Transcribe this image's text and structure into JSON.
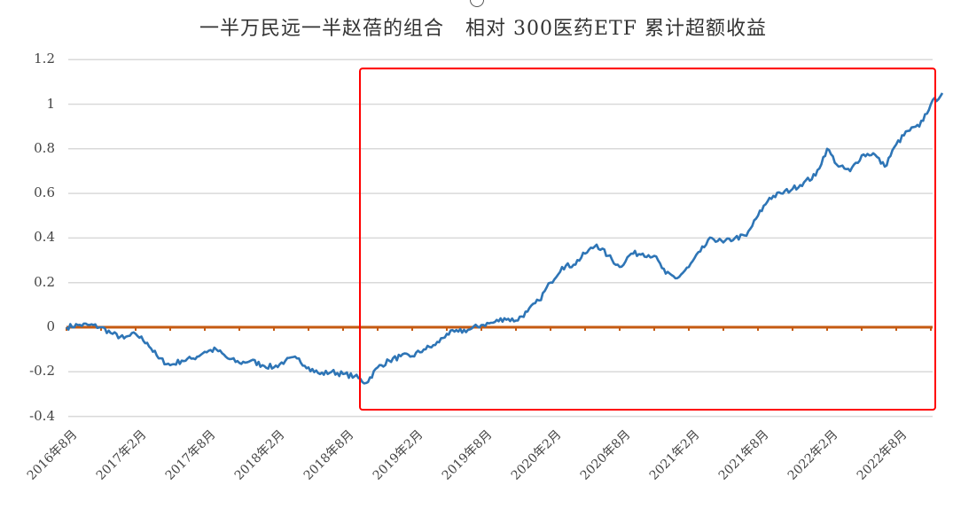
{
  "chart_data": {
    "type": "line",
    "title": "一半万民远一半赵蓓的组合   相对 300医药ETF 累计超额收益",
    "xlabel": "",
    "ylabel": "",
    "ylim": [
      -0.4,
      1.2
    ],
    "yticks": [
      "1.2",
      "1",
      "0.8",
      "0.6",
      "0.4",
      "0.2",
      "0",
      "-0.2",
      "-0.4"
    ],
    "x_tick_labels": [
      "2016年8月",
      "2017年2月",
      "2017年8月",
      "2018年2月",
      "2018年8月",
      "2019年2月",
      "2019年8月",
      "2020年2月",
      "2020年8月",
      "2021年2月",
      "2021年8月",
      "2022年2月",
      "2022年8月"
    ],
    "grid": true,
    "legend": "none",
    "series": [
      {
        "name": "累计超额收益",
        "color": "#2e75b6",
        "points": [
          [
            "2016-08",
            0.0
          ],
          [
            "2016-09",
            0.01
          ],
          [
            "2016-10",
            0.01
          ],
          [
            "2016-11",
            0.0
          ],
          [
            "2016-12",
            -0.03
          ],
          [
            "2017-01",
            -0.05
          ],
          [
            "2017-02",
            -0.03
          ],
          [
            "2017-03",
            -0.07
          ],
          [
            "2017-04",
            -0.14
          ],
          [
            "2017-05",
            -0.17
          ],
          [
            "2017-06",
            -0.15
          ],
          [
            "2017-07",
            -0.14
          ],
          [
            "2017-08",
            -0.11
          ],
          [
            "2017-09",
            -0.1
          ],
          [
            "2017-10",
            -0.14
          ],
          [
            "2017-11",
            -0.16
          ],
          [
            "2017-12",
            -0.15
          ],
          [
            "2018-01",
            -0.17
          ],
          [
            "2018-02",
            -0.18
          ],
          [
            "2018-03",
            -0.15
          ],
          [
            "2018-04",
            -0.14
          ],
          [
            "2018-05",
            -0.18
          ],
          [
            "2018-06",
            -0.21
          ],
          [
            "2018-07",
            -0.2
          ],
          [
            "2018-08",
            -0.21
          ],
          [
            "2018-09",
            -0.22
          ],
          [
            "2018-10",
            -0.25
          ],
          [
            "2018-11",
            -0.18
          ],
          [
            "2018-12",
            -0.15
          ],
          [
            "2019-01",
            -0.13
          ],
          [
            "2019-02",
            -0.13
          ],
          [
            "2019-03",
            -0.1
          ],
          [
            "2019-04",
            -0.08
          ],
          [
            "2019-05",
            -0.03
          ],
          [
            "2019-06",
            -0.02
          ],
          [
            "2019-07",
            -0.01
          ],
          [
            "2019-08",
            0.01
          ],
          [
            "2019-09",
            0.02
          ],
          [
            "2019-10",
            0.04
          ],
          [
            "2019-11",
            0.03
          ],
          [
            "2019-12",
            0.07
          ],
          [
            "2020-01",
            0.12
          ],
          [
            "2020-02",
            0.2
          ],
          [
            "2020-03",
            0.27
          ],
          [
            "2020-04",
            0.28
          ],
          [
            "2020-05",
            0.33
          ],
          [
            "2020-06",
            0.37
          ],
          [
            "2020-07",
            0.32
          ],
          [
            "2020-08",
            0.27
          ],
          [
            "2020-09",
            0.33
          ],
          [
            "2020-10",
            0.33
          ],
          [
            "2020-11",
            0.32
          ],
          [
            "2020-12",
            0.24
          ],
          [
            "2021-01",
            0.22
          ],
          [
            "2021-02",
            0.27
          ],
          [
            "2021-03",
            0.34
          ],
          [
            "2021-04",
            0.4
          ],
          [
            "2021-05",
            0.38
          ],
          [
            "2021-06",
            0.4
          ],
          [
            "2021-07",
            0.41
          ],
          [
            "2021-08",
            0.5
          ],
          [
            "2021-09",
            0.58
          ],
          [
            "2021-10",
            0.6
          ],
          [
            "2021-11",
            0.62
          ],
          [
            "2021-12",
            0.65
          ],
          [
            "2022-01",
            0.68
          ],
          [
            "2022-02",
            0.8
          ],
          [
            "2022-03",
            0.72
          ],
          [
            "2022-04",
            0.7
          ],
          [
            "2022-05",
            0.77
          ],
          [
            "2022-06",
            0.78
          ],
          [
            "2022-07",
            0.72
          ],
          [
            "2022-08",
            0.82
          ],
          [
            "2022-09",
            0.88
          ],
          [
            "2022-10",
            0.9
          ],
          [
            "2022-11",
            1.0
          ],
          [
            "2022-12",
            1.05
          ]
        ]
      },
      {
        "name": "基准线",
        "color": "#c55a11",
        "constant": 0
      }
    ],
    "annotations": [
      {
        "type": "rectangle",
        "color": "#ff0000",
        "from": "2018-10",
        "to": "2022-12",
        "y_range": [
          -0.37,
          1.16
        ]
      }
    ]
  }
}
